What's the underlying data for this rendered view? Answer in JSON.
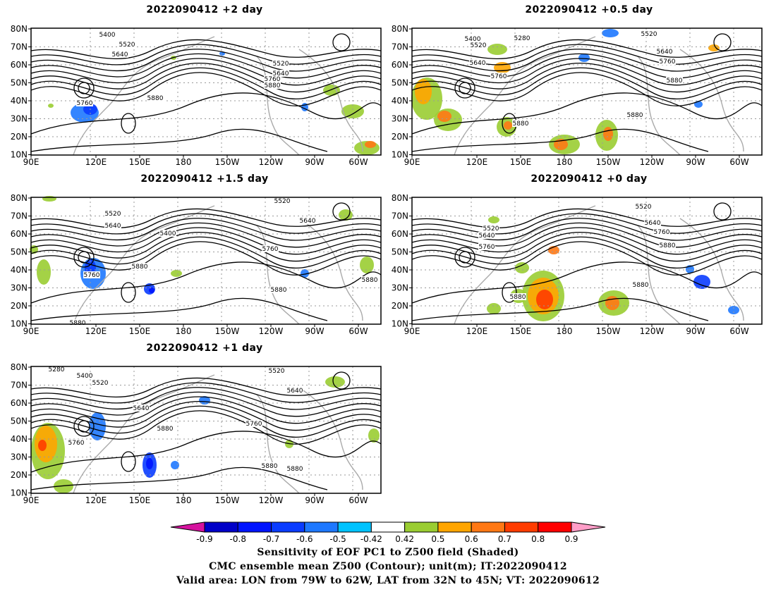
{
  "panels": [
    {
      "title": "2022090412 +2 day",
      "lat_ticks": [
        "80N",
        "70N",
        "60N",
        "50N",
        "40N",
        "30N",
        "20N",
        "10N"
      ],
      "lon_ticks": [
        "90E",
        "120E",
        "150E",
        "180",
        "150W",
        "120W",
        "90W",
        "60W"
      ],
      "contour_labels": [
        "5400",
        "5520",
        "5640",
        "5520",
        "5640",
        "5760",
        "5880",
        "5760",
        "5880"
      ]
    },
    {
      "title": "2022090412 +0.5 day",
      "lat_ticks": [
        "80N",
        "70N",
        "60N",
        "50N",
        "40N",
        "30N",
        "20N",
        "10N"
      ],
      "lon_ticks": [
        "90E",
        "120E",
        "150E",
        "180",
        "150W",
        "120W",
        "90W",
        "60W"
      ],
      "contour_labels": [
        "5400",
        "5280",
        "5520",
        "5520",
        "5640",
        "5640",
        "5760",
        "5760",
        "5880",
        "5880",
        "5880"
      ]
    },
    {
      "title": "2022090412 +1.5 day",
      "lat_ticks": [
        "80N",
        "70N",
        "60N",
        "50N",
        "40N",
        "30N",
        "20N",
        "10N"
      ],
      "lon_ticks": [
        "90E",
        "120E",
        "150E",
        "180",
        "150W",
        "120W",
        "90W",
        "60W"
      ],
      "contour_labels": [
        "5520",
        "5520",
        "5640",
        "5400",
        "5640",
        "5760",
        "5880",
        "5760",
        "5880",
        "5880",
        "5880"
      ]
    },
    {
      "title": "2022090412 +0 day",
      "lat_ticks": [
        "80N",
        "70N",
        "60N",
        "50N",
        "40N",
        "30N",
        "20N",
        "10N"
      ],
      "lon_ticks": [
        "90E",
        "120E",
        "150E",
        "180",
        "150W",
        "120W",
        "90W",
        "60W"
      ],
      "contour_labels": [
        "5520",
        "5520",
        "5640",
        "5640",
        "5760",
        "5760",
        "5880",
        "5880",
        "5880"
      ]
    },
    {
      "title": "2022090412 +1 day",
      "lat_ticks": [
        "80N",
        "70N",
        "60N",
        "50N",
        "40N",
        "30N",
        "20N",
        "10N"
      ],
      "lon_ticks": [
        "90E",
        "120E",
        "150E",
        "180",
        "150W",
        "120W",
        "90W",
        "60W"
      ],
      "contour_labels": [
        "5280",
        "5400",
        "5520",
        "5520",
        "5640",
        "5640",
        "5880",
        "5760",
        "5760",
        "5880",
        "5880"
      ]
    }
  ],
  "colorbar": {
    "labels": [
      "-0.9",
      "-0.8",
      "-0.7",
      "-0.6",
      "-0.5",
      "-0.42",
      "0.42",
      "0.5",
      "0.6",
      "0.7",
      "0.8",
      "0.9"
    ],
    "colors": [
      "#d5129e",
      "#0000c8",
      "#0014ff",
      "#0a3cff",
      "#1e78ff",
      "#00c3ff",
      "#ffffff",
      "#9acd32",
      "#ffa500",
      "#ff7814",
      "#ff3c00",
      "#ff0000",
      "#ff9ec8"
    ]
  },
  "footer": {
    "line1": "Sensitivity of EOF PC1 to Z500 field (Shaded)",
    "line2": "CMC ensemble mean Z500 (Contour); unit(m); IT:2022090412",
    "line3": "Valid area: LON from 79W to 62W, LAT from 32N to 45N; VT: 2022090612"
  }
}
